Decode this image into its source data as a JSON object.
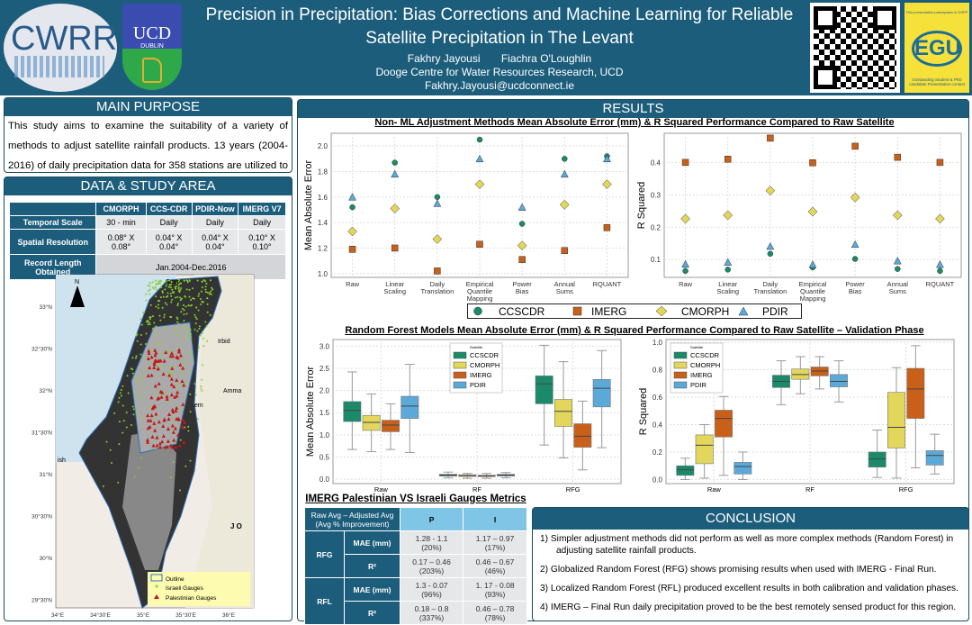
{
  "header": {
    "title": "Precision in Precipitation: Bias Corrections and Machine Learning for Reliable Satellite Precipitation in The Levant",
    "authors": [
      "Fakhry Jayousi",
      "Fiachra O'Loughlin"
    ],
    "affiliation": "Dooge Centre for Water Resources Research, UCD",
    "email": "Fakhry.Jayousi@ucdconnect.ie",
    "logos": {
      "cwrr": "CWRR",
      "ucd": "UCD",
      "ucd_sub": "DUBLIN",
      "egu": "EGU",
      "egu_top": "This presentation participates in OSPP",
      "egu_bottom": "Outstanding Student & PhD candidate Presentation contest"
    }
  },
  "purpose": {
    "heading": "MAIN PURPOSE",
    "text": "This study aims to examine the suitability of a variety of methods to adjust satellite rainfall products. 13 years (2004-2016) of daily precipitation data for 358 stations are utilized to obtain reliable"
  },
  "study": {
    "heading": "DATA & STUDY AREA",
    "table": {
      "columns": [
        "",
        "CMORPH",
        "CCS-CDR",
        "PDIR-Now",
        "IMERG V7"
      ],
      "rows": [
        {
          "label": "Temporal Scale",
          "cells": [
            "30 - min",
            "Daily",
            "Daily",
            "Daily"
          ]
        },
        {
          "label": "Spatial Resolution",
          "cells": [
            "0.08° X 0.08°",
            "0.04° X 0.04°",
            "0.04° X 0.04°",
            "0.10° X 0.10°"
          ]
        },
        {
          "label": "Record Length Obtained",
          "span": "Jan.2004-Dec.2016"
        }
      ]
    },
    "map": {
      "north": "N",
      "lat_ticks": [
        "33°N",
        "32°30'N",
        "32°N",
        "31°30'N",
        "31°N",
        "30°30'N",
        "30°N",
        "29°30'N"
      ],
      "lon_ticks": [
        "34°E",
        "34°30'E",
        "35°E",
        "35°30'E",
        "36°E"
      ],
      "places": [
        "Sour",
        "Irbid",
        "Amma",
        "em",
        "ish",
        "J O"
      ],
      "legend": [
        "Outline",
        "Israeli Gauges",
        "Palestinian Gauges"
      ]
    }
  },
  "results": {
    "heading": "RESULTS",
    "section1_title": "Non- ML Adjustment Methods Mean Absolute Error (mm) & R Squared  Performance Compared to Raw Satellite",
    "section2_title": "Random Forest Models Mean Absolute Error (mm) & R Squared  Performance Compared to Raw Satellite – Validation Phase",
    "legend": [
      "CCSCDR",
      "IMERG",
      "CMORPH",
      "PDIR"
    ]
  },
  "colors": {
    "CCSCDR": "#1a8a6a",
    "IMERG": "#c8601a",
    "CMORPH": "#e2d75a",
    "PDIR": "#5ba9d8",
    "header": "#1d5d7c"
  },
  "chart_data": [
    {
      "type": "scatter",
      "ylabel": "Mean Absolute Error",
      "categories": [
        "Raw",
        "Linear Scaling",
        "Daily Translation",
        "Empirical Quantile Mapping",
        "Power Bias",
        "Annual Sums",
        "RQUANT"
      ],
      "ylim": [
        0.97,
        2.1
      ],
      "yticks": [
        "1.0",
        "1.2",
        "1.4",
        "1.6",
        "1.8",
        "2.0"
      ],
      "grid": true,
      "series": [
        {
          "name": "CCSCDR",
          "marker": "circle",
          "values": [
            1.52,
            1.87,
            1.6,
            2.05,
            1.39,
            1.9,
            1.92
          ]
        },
        {
          "name": "IMERG",
          "marker": "square",
          "values": [
            1.19,
            1.2,
            1.02,
            1.23,
            1.11,
            1.18,
            1.36
          ]
        },
        {
          "name": "CMORPH",
          "marker": "diamond",
          "values": [
            1.33,
            1.51,
            1.27,
            1.7,
            1.22,
            1.54,
            1.7
          ]
        },
        {
          "name": "PDIR",
          "marker": "triangle",
          "values": [
            1.6,
            1.78,
            1.55,
            1.9,
            1.52,
            1.78,
            1.9
          ]
        }
      ]
    },
    {
      "type": "scatter",
      "ylabel": "R Squared",
      "categories": [
        "Raw",
        "Linear Scaling",
        "Daily Translation",
        "Empirical Quantile Mapping",
        "Power Bias",
        "Annual Sums",
        "RQUANT"
      ],
      "ylim": [
        0.045,
        0.49
      ],
      "yticks": [
        "0.1",
        "0.2",
        "0.3",
        "0.4"
      ],
      "grid": true,
      "series": [
        {
          "name": "CCSCDR",
          "marker": "circle",
          "values": [
            0.065,
            0.069,
            0.118,
            0.076,
            0.102,
            0.071,
            0.065
          ]
        },
        {
          "name": "IMERG",
          "marker": "square",
          "values": [
            0.4,
            0.41,
            0.475,
            0.399,
            0.45,
            0.416,
            0.4
          ]
        },
        {
          "name": "CMORPH",
          "marker": "diamond",
          "values": [
            0.226,
            0.237,
            0.313,
            0.248,
            0.292,
            0.237,
            0.226
          ]
        },
        {
          "name": "PDIR",
          "marker": "triangle",
          "values": [
            0.086,
            0.092,
            0.141,
            0.085,
            0.147,
            0.096,
            0.085
          ]
        }
      ]
    },
    {
      "type": "box",
      "ylabel": "Mean Absolute Error",
      "categories": [
        "Raw",
        "RF",
        "RFG"
      ],
      "ylim": [
        -0.1,
        3.15
      ],
      "yticks": [
        "0.0",
        "0.5",
        "1.0",
        "1.5",
        "2.0",
        "2.5",
        "3.0"
      ],
      "grid": true,
      "legend_title": "Satellite",
      "legend_position": "top-center",
      "series": [
        {
          "name": "CCSCDR",
          "boxes": [
            [
              0.67,
              1.3,
              1.55,
              1.75,
              2.42
            ],
            [
              0.03,
              0.07,
              0.09,
              0.11,
              0.16
            ],
            [
              0.77,
              1.7,
              2.15,
              2.33,
              3.02
            ]
          ]
        },
        {
          "name": "CMORPH",
          "boxes": [
            [
              0.62,
              1.1,
              1.28,
              1.44,
              1.92
            ],
            [
              0.02,
              0.06,
              0.08,
              0.1,
              0.13
            ],
            [
              0.48,
              1.19,
              1.53,
              1.8,
              2.65
            ]
          ]
        },
        {
          "name": "IMERG",
          "boxes": [
            [
              0.67,
              1.07,
              1.22,
              1.33,
              1.7
            ],
            [
              0.02,
              0.06,
              0.07,
              0.09,
              0.13
            ],
            [
              0.21,
              0.72,
              0.97,
              1.25,
              1.76
            ]
          ]
        },
        {
          "name": "PDIR",
          "boxes": [
            [
              0.6,
              1.37,
              1.65,
              1.87,
              2.59
            ],
            [
              0.03,
              0.07,
              0.09,
              0.11,
              0.15
            ],
            [
              0.71,
              1.63,
              2.05,
              2.25,
              2.9
            ]
          ]
        }
      ]
    },
    {
      "type": "box",
      "ylabel": "R Squared",
      "categories": [
        "Raw",
        "RF",
        "RFG"
      ],
      "ylim": [
        -0.03,
        1.02
      ],
      "yticks": [
        "0.0",
        "0.2",
        "0.4",
        "0.6",
        "0.8",
        "1.0"
      ],
      "grid": true,
      "legend_title": "Satellite",
      "legend_position": "top-left",
      "series": [
        {
          "name": "CCSCDR",
          "boxes": [
            [
              0,
              0.03,
              0.07,
              0.1,
              0.155
            ],
            [
              0.545,
              0.67,
              0.715,
              0.76,
              0.865
            ],
            [
              0.015,
              0.09,
              0.15,
              0.2,
              0.36
            ]
          ]
        },
        {
          "name": "CMORPH",
          "boxes": [
            [
              0.01,
              0.115,
              0.25,
              0.325,
              0.4
            ],
            [
              0.625,
              0.73,
              0.765,
              0.805,
              0.895
            ],
            [
              0.01,
              0.23,
              0.38,
              0.635,
              0.815
            ]
          ]
        },
        {
          "name": "IMERG",
          "boxes": [
            [
              0.03,
              0.31,
              0.445,
              0.505,
              0.605
            ],
            [
              0.66,
              0.755,
              0.79,
              0.82,
              0.895
            ],
            [
              0.085,
              0.445,
              0.66,
              0.81,
              0.975
            ]
          ]
        },
        {
          "name": "PDIR",
          "boxes": [
            [
              0,
              0.04,
              0.095,
              0.125,
              0.2
            ],
            [
              0.565,
              0.675,
              0.715,
              0.765,
              0.865
            ],
            [
              0.04,
              0.105,
              0.175,
              0.21,
              0.33
            ]
          ]
        }
      ]
    }
  ],
  "gauges": {
    "title": "IMERG Palestinian VS Israeli Gauges Metrics",
    "corner": "Raw Avg – Adjusted Avg (Avg % Improvement)",
    "col_p": "P",
    "col_i": "I",
    "rows": [
      {
        "model": "RFG",
        "metric": "MAE (mm)",
        "p": "1.28 - 1.1",
        "p_pct": "(20%)",
        "i": "1.17 – 0.97",
        "i_pct": "(17%)"
      },
      {
        "model": "RFG",
        "metric": "R²",
        "p": "0.17 – 0.46",
        "p_pct": "(203%)",
        "i": "0.46 – 0.67",
        "i_pct": "(46%)"
      },
      {
        "model": "RFL",
        "metric": "MAE (mm)",
        "p": "1.3 - 0.07",
        "p_pct": "(96%)",
        "i": "1. 17 - 0.08",
        "i_pct": "(93%)"
      },
      {
        "model": "RFL",
        "metric": "R²",
        "p": "0.18 – 0.8",
        "p_pct": "(337%)",
        "i": "0.46 – 0.78",
        "i_pct": "(78%)"
      }
    ]
  },
  "conclusion": {
    "heading": "CONCLUSION",
    "items": [
      "1)  Simpler adjustment methods did not perform as well as more complex methods (Random Forest) in adjusting satellite rainfall products.",
      "2)  Globalized Random Forest (RFG) shows promising results when used with IMERG - Final Run.",
      "3)  Localized Random Forest (RFL) produced excellent results in both calibration and validation phases.",
      "4)  IMERG – Final Run daily precipitation proved to be the best remotely sensed product for this region."
    ]
  }
}
